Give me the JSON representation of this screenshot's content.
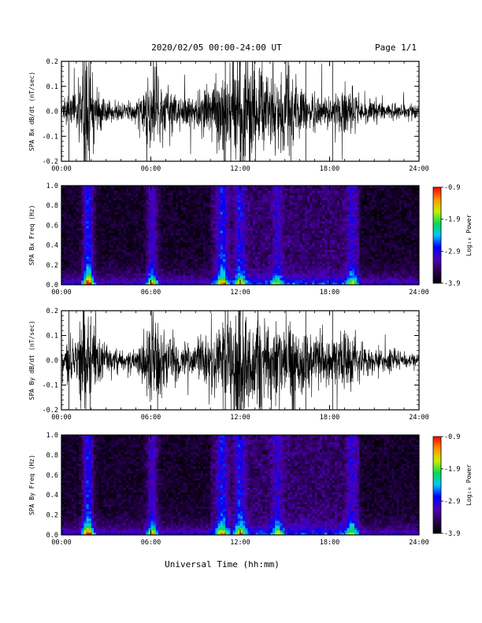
{
  "header": {
    "title": "2020/02/05  00:00-24:00 UT",
    "page": "Page 1/1"
  },
  "x_axis_title": "Universal Time (hh:mm)",
  "colorscale": {
    "label": "Log₁₀ Power",
    "ticks": [
      "-0.9",
      "-1.9",
      "-2.9",
      "-3.9"
    ],
    "tick_values": [
      -0.9,
      -1.9,
      -2.9,
      -3.9
    ],
    "range": [
      -3.9,
      -0.9
    ]
  },
  "chart_data": [
    {
      "type": "line",
      "id": "bx-waveform",
      "ylabel": "SPA Bx dB/dt (nT/sec)",
      "xlim": [
        0,
        24
      ],
      "ylim": [
        -0.2,
        0.2
      ],
      "x_ticks": [
        "00:00",
        "06:00",
        "12:00",
        "18:00",
        "24:00"
      ],
      "y_ticks": [
        "0.2",
        "0.1",
        "0.0",
        "-0.1",
        "-0.2"
      ],
      "y_tick_values": [
        0.2,
        0.1,
        0.0,
        -0.1,
        -0.2
      ],
      "envelope_hours": [
        0,
        1,
        1.5,
        1.8,
        2.5,
        3,
        4,
        5,
        5.5,
        6.2,
        6.8,
        8,
        9,
        10,
        10.8,
        11.5,
        12,
        13,
        14,
        15,
        16,
        17,
        18,
        19,
        20,
        21,
        22,
        23,
        24
      ],
      "envelope_amplitude": [
        0.05,
        0.06,
        0.21,
        0.21,
        0.08,
        0.04,
        0.03,
        0.03,
        0.08,
        0.21,
        0.09,
        0.05,
        0.06,
        0.09,
        0.16,
        0.2,
        0.18,
        0.2,
        0.12,
        0.16,
        0.1,
        0.07,
        0.06,
        0.08,
        0.05,
        0.04,
        0.03,
        0.025,
        0.02
      ]
    },
    {
      "type": "heatmap",
      "id": "bx-spectrogram",
      "ylabel": "SPA Bx Freq (Hz)",
      "xlim": [
        0,
        24
      ],
      "ylim": [
        0,
        1
      ],
      "x_ticks": [
        "00:00",
        "06:00",
        "12:00",
        "18:00",
        "24:00"
      ],
      "y_ticks": [
        "1.0",
        "0.8",
        "0.6",
        "0.4",
        "0.2",
        "0.0"
      ],
      "y_tick_values": [
        1.0,
        0.8,
        0.6,
        0.4,
        0.2,
        0.0
      ],
      "event_hours": [
        1.8,
        6.1,
        10.8,
        12.0,
        14.5,
        19.5
      ],
      "event_power": [
        -1.2,
        -2.0,
        -2.1,
        -2.3,
        -2.7,
        -2.6
      ]
    },
    {
      "type": "line",
      "id": "by-waveform",
      "ylabel": "SPA By dB/dt (nT/sec)",
      "xlim": [
        0,
        24
      ],
      "ylim": [
        -0.2,
        0.2
      ],
      "x_ticks": [
        "00:00",
        "06:00",
        "12:00",
        "18:00",
        "24:00"
      ],
      "y_ticks": [
        "0.2",
        "0.1",
        "0.0",
        "-0.1",
        "-0.2"
      ],
      "y_tick_values": [
        0.2,
        0.1,
        0.0,
        -0.1,
        -0.2
      ],
      "envelope_hours": [
        0,
        1,
        1.5,
        1.8,
        2.5,
        3,
        4,
        5,
        5.5,
        6.2,
        6.8,
        8,
        9,
        10,
        10.8,
        11.5,
        12,
        13,
        14,
        15,
        16,
        17,
        18,
        19,
        20,
        21,
        22,
        23,
        24
      ],
      "envelope_amplitude": [
        0.06,
        0.08,
        0.21,
        0.21,
        0.1,
        0.06,
        0.04,
        0.04,
        0.1,
        0.21,
        0.1,
        0.06,
        0.07,
        0.1,
        0.18,
        0.21,
        0.2,
        0.19,
        0.15,
        0.14,
        0.12,
        0.09,
        0.08,
        0.09,
        0.07,
        0.05,
        0.04,
        0.03,
        0.02
      ]
    },
    {
      "type": "heatmap",
      "id": "by-spectrogram",
      "ylabel": "SPA By Freq (Hz)",
      "xlim": [
        0,
        24
      ],
      "ylim": [
        0,
        1
      ],
      "x_ticks": [
        "00:00",
        "06:00",
        "12:00",
        "18:00",
        "24:00"
      ],
      "y_ticks": [
        "1.0",
        "0.8",
        "0.6",
        "0.4",
        "0.2",
        "0.0"
      ],
      "y_tick_values": [
        1.0,
        0.8,
        0.6,
        0.4,
        0.2,
        0.0
      ],
      "event_hours": [
        1.8,
        6.1,
        10.8,
        12.0,
        14.5,
        19.5
      ],
      "event_power": [
        -1.3,
        -2.0,
        -2.1,
        -2.2,
        -2.6,
        -2.6
      ]
    }
  ]
}
